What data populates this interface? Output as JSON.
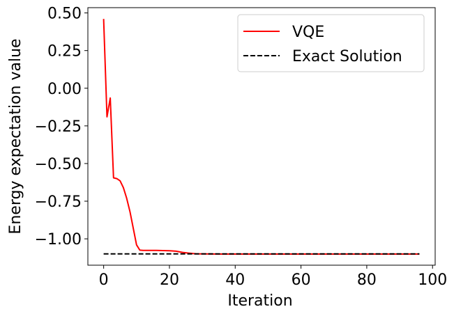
{
  "chart_data": {
    "type": "line",
    "xlabel": "Iteration",
    "ylabel": "Energy expectation value",
    "xlim": [
      -4.8,
      100.8
    ],
    "ylim": [
      -1.175,
      0.535
    ],
    "x_ticks": [
      0,
      20,
      40,
      60,
      80,
      100
    ],
    "x_tick_labels": [
      "0",
      "20",
      "40",
      "60",
      "80",
      "100"
    ],
    "y_ticks": [
      0.5,
      0.25,
      0.0,
      -0.25,
      -0.5,
      -0.75,
      -1.0
    ],
    "y_tick_labels": [
      "0.50",
      "0.25",
      "0.00",
      "−0.25",
      "−0.50",
      "−0.75",
      "−1.00"
    ],
    "grid": false,
    "legend_position": "top-right",
    "series": [
      {
        "name": "VQE",
        "color": "#ff0000",
        "style": "solid",
        "x": [
          0,
          1,
          2,
          3,
          4,
          5,
          6,
          7,
          8,
          9,
          10,
          11,
          12,
          14,
          16,
          18,
          20,
          22,
          24,
          26,
          28,
          30,
          35,
          40,
          50,
          60,
          70,
          80,
          90,
          96
        ],
        "y": [
          0.46,
          -0.19,
          -0.065,
          -0.595,
          -0.6,
          -0.615,
          -0.66,
          -0.73,
          -0.82,
          -0.93,
          -1.04,
          -1.075,
          -1.077,
          -1.077,
          -1.077,
          -1.078,
          -1.079,
          -1.082,
          -1.09,
          -1.095,
          -1.099,
          -1.1,
          -1.101,
          -1.101,
          -1.101,
          -1.101,
          -1.101,
          -1.101,
          -1.101,
          -1.101
        ]
      },
      {
        "name": "Exact Solution",
        "color": "#000000",
        "style": "dashed",
        "x": [
          0,
          96
        ],
        "y": [
          -1.1,
          -1.1
        ]
      }
    ]
  }
}
